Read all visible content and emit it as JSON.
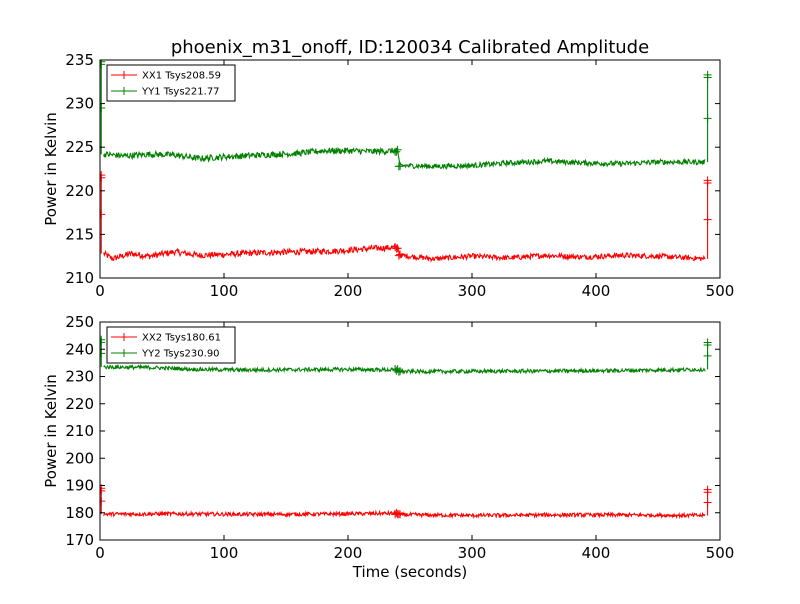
{
  "figure": {
    "title": "phoenix_m31_onoff, ID:120034 Calibrated Amplitude",
    "xlabel": "Time (seconds)"
  },
  "chart_data": [
    {
      "type": "line",
      "ylabel": "Power in Kelvin",
      "xlim": [
        0,
        500
      ],
      "ylim": [
        210,
        235
      ],
      "xticks": [
        0,
        100,
        200,
        300,
        400,
        500
      ],
      "yticks": [
        210,
        215,
        220,
        225,
        230,
        235
      ],
      "grid": false,
      "legend_position": "top-left",
      "series": [
        {
          "name": "XX1 Tsys208.59",
          "color": "#ff0000",
          "segments": [
            {
              "x0": 3,
              "x1": 240,
              "y_points": [
                [
                  3,
                  212.8
                ],
                [
                  10,
                  212.2
                ],
                [
                  25,
                  212.8
                ],
                [
                  40,
                  212.5
                ],
                [
                  60,
                  213.0
                ],
                [
                  80,
                  212.6
                ],
                [
                  100,
                  212.7
                ],
                [
                  130,
                  212.9
                ],
                [
                  160,
                  213.0
                ],
                [
                  190,
                  213.1
                ],
                [
                  220,
                  213.4
                ],
                [
                  240,
                  213.5
                ]
              ],
              "noise": 0.35
            },
            {
              "x0": 242,
              "x1": 488,
              "y_points": [
                [
                  242,
                  212.6
                ],
                [
                  270,
                  212.2
                ],
                [
                  300,
                  212.5
                ],
                [
                  330,
                  212.3
                ],
                [
                  360,
                  212.6
                ],
                [
                  390,
                  212.4
                ],
                [
                  420,
                  212.6
                ],
                [
                  450,
                  212.5
                ],
                [
                  488,
                  212.2
                ]
              ],
              "noise": 0.3
            }
          ],
          "spikes": [
            {
              "x": 1,
              "from": 212.8,
              "to": 221.8
            },
            {
              "x": 490,
              "from": 212.2,
              "to": 221.2
            }
          ]
        },
        {
          "name": "YY1 Tsys221.77",
          "color": "#008000",
          "segments": [
            {
              "x0": 3,
              "x1": 240,
              "y_points": [
                [
                  3,
                  224.2
                ],
                [
                  20,
                  224.0
                ],
                [
                  40,
                  224.2
                ],
                [
                  60,
                  224.1
                ],
                [
                  80,
                  223.7
                ],
                [
                  100,
                  223.9
                ],
                [
                  130,
                  224.1
                ],
                [
                  160,
                  224.3
                ],
                [
                  180,
                  224.6
                ],
                [
                  200,
                  224.6
                ],
                [
                  220,
                  224.5
                ],
                [
                  240,
                  224.6
                ]
              ],
              "noise": 0.35
            },
            {
              "x0": 242,
              "x1": 488,
              "y_points": [
                [
                  242,
                  222.9
                ],
                [
                  270,
                  222.8
                ],
                [
                  300,
                  222.9
                ],
                [
                  330,
                  223.2
                ],
                [
                  360,
                  223.4
                ],
                [
                  390,
                  223.2
                ],
                [
                  420,
                  223.1
                ],
                [
                  450,
                  223.3
                ],
                [
                  488,
                  223.3
                ]
              ],
              "noise": 0.3
            }
          ],
          "spikes": [
            {
              "x": 1,
              "from": 224.2,
              "to": 234.8
            },
            {
              "x": 490,
              "from": 223.3,
              "to": 233.3
            }
          ]
        }
      ]
    },
    {
      "type": "line",
      "ylabel": "Power in Kelvin",
      "xlabel": "Time (seconds)",
      "xlim": [
        0,
        500
      ],
      "ylim": [
        170,
        250
      ],
      "xticks": [
        0,
        100,
        200,
        300,
        400,
        500
      ],
      "yticks": [
        170,
        180,
        190,
        200,
        210,
        220,
        230,
        240,
        250
      ],
      "grid": false,
      "legend_position": "top-left",
      "series": [
        {
          "name": "XX2 Tsys180.61",
          "color": "#ff0000",
          "segments": [
            {
              "x0": 3,
              "x1": 240,
              "y_points": [
                [
                  3,
                  179.5
                ],
                [
                  60,
                  179.6
                ],
                [
                  120,
                  179.4
                ],
                [
                  180,
                  179.5
                ],
                [
                  240,
                  179.8
                ]
              ],
              "noise": 0.7
            },
            {
              "x0": 242,
              "x1": 488,
              "y_points": [
                [
                  242,
                  179.3
                ],
                [
                  300,
                  179.0
                ],
                [
                  360,
                  179.2
                ],
                [
                  420,
                  179.2
                ],
                [
                  488,
                  179.0
                ]
              ],
              "noise": 0.7
            }
          ],
          "spikes": [
            {
              "x": 1,
              "from": 179.5,
              "to": 189.0
            },
            {
              "x": 490,
              "from": 179.0,
              "to": 188.5
            }
          ]
        },
        {
          "name": "YY2 Tsys230.90",
          "color": "#008000",
          "segments": [
            {
              "x0": 3,
              "x1": 240,
              "y_points": [
                [
                  3,
                  233.5
                ],
                [
                  40,
                  233.3
                ],
                [
                  80,
                  232.6
                ],
                [
                  120,
                  232.4
                ],
                [
                  160,
                  232.5
                ],
                [
                  200,
                  232.6
                ],
                [
                  240,
                  232.4
                ]
              ],
              "noise": 0.7
            },
            {
              "x0": 242,
              "x1": 488,
              "y_points": [
                [
                  242,
                  231.8
                ],
                [
                  300,
                  231.9
                ],
                [
                  360,
                  232.0
                ],
                [
                  420,
                  232.2
                ],
                [
                  488,
                  232.6
                ]
              ],
              "noise": 0.7
            }
          ],
          "spikes": [
            {
              "x": 1,
              "from": 233.5,
              "to": 243.5
            },
            {
              "x": 490,
              "from": 232.6,
              "to": 242.5
            }
          ]
        }
      ]
    }
  ]
}
